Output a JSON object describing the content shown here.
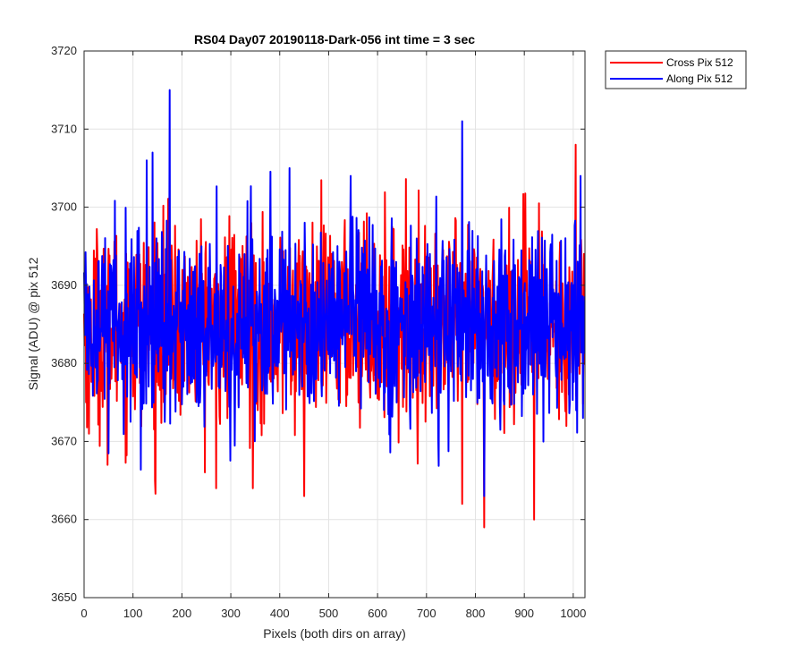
{
  "chart_data": {
    "type": "line",
    "title": "RS04 Day07 20190118-Dark-056 int time = 3 sec",
    "xlabel": "Pixels (both dirs on array)",
    "ylabel": "Signal (ADU) @ pix 512",
    "xlim": [
      0,
      1024
    ],
    "ylim": [
      3650,
      3720
    ],
    "xticks": [
      "0",
      "100",
      "200",
      "300",
      "400",
      "500",
      "600",
      "700",
      "800",
      "900",
      "1000"
    ],
    "yticks": [
      "3650",
      "3660",
      "3670",
      "3680",
      "3690",
      "3700",
      "3710",
      "3720"
    ],
    "grid": true,
    "legend_position": "outside-top-right",
    "series": [
      {
        "name": "Cross Pix 512",
        "color": "#ff0000",
        "mean": 3685,
        "noise_sd": 6.2,
        "n_points": 1024,
        "notable_points": [
          [
            10,
            3671
          ],
          [
            48,
            3667
          ],
          [
            145,
            3665
          ],
          [
            270,
            3664
          ],
          [
            345,
            3664
          ],
          [
            450,
            3663
          ],
          [
            773,
            3662
          ],
          [
            818,
            3659
          ],
          [
            920,
            3660
          ],
          [
            1005,
            3708
          ]
        ]
      },
      {
        "name": "Along Pix 512",
        "color": "#0000ff",
        "mean": 3685,
        "noise_sd": 6.0,
        "n_points": 1024,
        "notable_points": [
          [
            140,
            3707
          ],
          [
            175,
            3715
          ],
          [
            420,
            3705
          ],
          [
            545,
            3704
          ],
          [
            773,
            3711
          ],
          [
            818,
            3663
          ],
          [
            1015,
            3704
          ],
          [
            1020,
            3673
          ]
        ]
      }
    ]
  }
}
